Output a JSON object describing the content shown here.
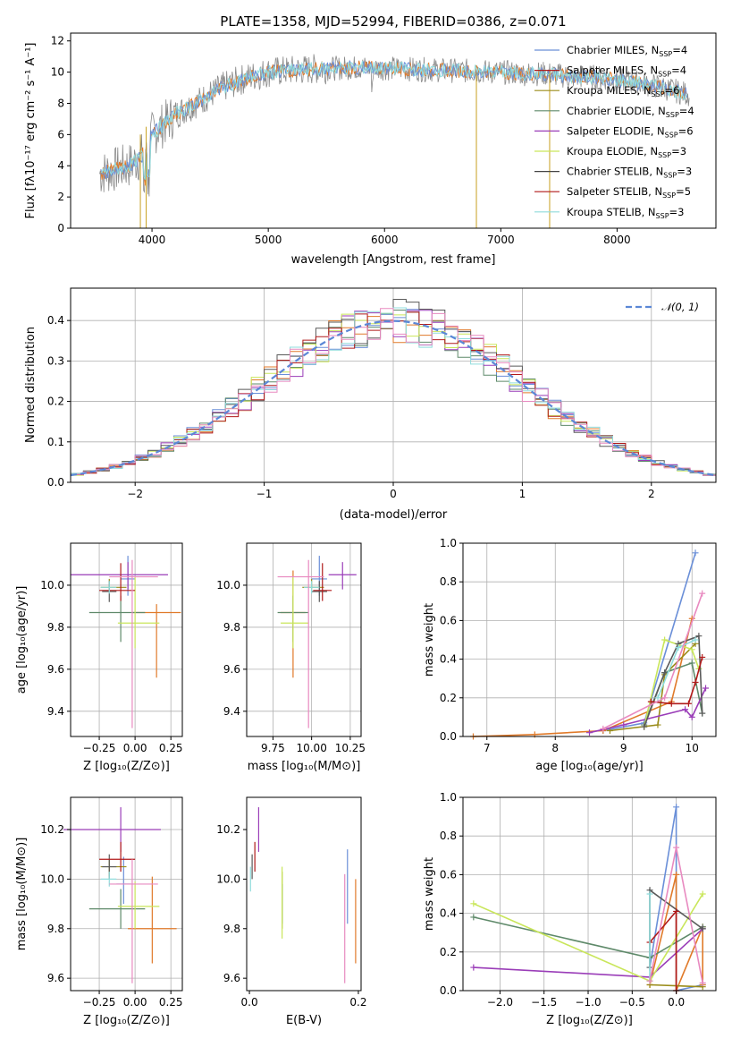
{
  "colors": [
    "#6a8fd8",
    "#e07a2a",
    "#9a8c1a",
    "#5f8a6a",
    "#9a3db8",
    "#c9e65a",
    "#5a5a5a",
    "#b01a1a",
    "#8fdcdc",
    "#e88ac0",
    "#8a8a8a"
  ],
  "legend_colors": [
    "#6a8fd8",
    "#b01a1a",
    "#9a8c1a",
    "#5f8a6a",
    "#9a3db8",
    "#c9e65a",
    "#444444",
    "#b01a1a",
    "#8fdcdc"
  ],
  "chart_data": [
    {
      "id": "spectrum",
      "type": "line",
      "title": "PLATE=1358, MJD=52994, FIBERID=0386, z=0.071",
      "xlabel": "wavelength [Angstrom, rest frame]",
      "ylabel": "Flux [fλ10⁻¹⁷ erg cm⁻² s⁻¹ A⁻¹]",
      "xlim": [
        3300,
        8850
      ],
      "ylim": [
        0,
        12.5
      ],
      "xticks": [
        4000,
        5000,
        6000,
        7000,
        8000
      ],
      "yticks": [
        0,
        2,
        4,
        6,
        8,
        10,
        12
      ],
      "continuum_anchor_points": [
        [
          3550,
          3.5
        ],
        [
          3700,
          3.8
        ],
        [
          3800,
          4.0
        ],
        [
          3900,
          4.5
        ],
        [
          4000,
          6.0
        ],
        [
          4200,
          7.3
        ],
        [
          4400,
          8.1
        ],
        [
          4600,
          9.0
        ],
        [
          4800,
          9.6
        ],
        [
          5000,
          10.0
        ],
        [
          5200,
          10.1
        ],
        [
          5400,
          10.2
        ],
        [
          5600,
          10.25
        ],
        [
          5800,
          10.3
        ],
        [
          6000,
          10.25
        ],
        [
          6200,
          10.2
        ],
        [
          6400,
          10.15
        ],
        [
          6600,
          10.1
        ],
        [
          6800,
          10.05
        ],
        [
          7000,
          10.0
        ],
        [
          7200,
          9.9
        ],
        [
          7400,
          9.9
        ],
        [
          7600,
          9.7
        ],
        [
          7800,
          9.7
        ],
        [
          8000,
          9.5
        ],
        [
          8200,
          9.3
        ],
        [
          8400,
          9.0
        ],
        [
          8600,
          8.6
        ]
      ],
      "legend_placement": "upper right",
      "series": [
        {
          "name": "Chabrier MILES, N",
          "nssp": "=4"
        },
        {
          "name": "Salpeter MILES, N",
          "nssp": "=4"
        },
        {
          "name": "Kroupa MILES, N",
          "nssp": "=6"
        },
        {
          "name": "Chabrier ELODIE, N",
          "nssp": "=4"
        },
        {
          "name": "Salpeter ELODIE, N",
          "nssp": "=6"
        },
        {
          "name": "Kroupa ELODIE, N",
          "nssp": "=3"
        },
        {
          "name": "Chabrier STELIB, N",
          "nssp": "=3"
        },
        {
          "name": "Salpeter STELIB, N",
          "nssp": "=5"
        },
        {
          "name": "Kroupa STELIB, N",
          "nssp": "=3"
        }
      ],
      "ssp_sub": "SSP"
    },
    {
      "id": "residuals",
      "type": "histogram",
      "xlabel": "(data-model)/error",
      "ylabel": "Normed distribution",
      "xlim": [
        -2.5,
        2.5
      ],
      "ylim": [
        0,
        0.48
      ],
      "xticks": [
        -2,
        -1,
        0,
        1,
        2
      ],
      "yticks": [
        0.0,
        0.1,
        0.2,
        0.3,
        0.4
      ],
      "grid": true,
      "bin_width": 0.1,
      "reference_curve": "𝒩(0, 1)",
      "legend_placement": "upper right"
    },
    {
      "id": "age_vs_Z",
      "type": "errorbar",
      "xlabel": "Z [log₁₀(Z/Z⊙)]",
      "ylabel": "age  [log₁₀(age/yr)]",
      "xlim": [
        -0.45,
        0.33
      ],
      "ylim": [
        9.28,
        10.2
      ],
      "xticks": [
        -0.25,
        0.0,
        0.25
      ],
      "yticks": [
        9.4,
        9.6,
        9.8,
        10.0
      ],
      "grid": true,
      "points": [
        {
          "x": -0.05,
          "y": 10.03,
          "xerr": [
            0.05,
            0.05
          ],
          "yerr": [
            0.08,
            0.11
          ]
        },
        {
          "x": 0.15,
          "y": 9.87,
          "xerr": [
            0.17,
            0.17
          ],
          "yerr": [
            0.31,
            0.04
          ]
        },
        {
          "x": -0.18,
          "y": 9.99,
          "xerr": [
            0.06,
            0.12
          ],
          "yerr": [
            0.01,
            0.04
          ]
        },
        {
          "x": -0.1,
          "y": 9.87,
          "xerr": [
            0.22,
            0.17
          ],
          "yerr": [
            0.14,
            0.08
          ]
        },
        {
          "x": -0.05,
          "y": 10.05,
          "xerr": [
            0.4,
            0.28
          ],
          "yerr": [
            0.07,
            0.06
          ]
        },
        {
          "x": 0.0,
          "y": 9.82,
          "xerr": [
            0.12,
            0.17
          ],
          "yerr": [
            0.12,
            0.22
          ]
        },
        {
          "x": -0.18,
          "y": 9.97,
          "xerr": [
            0.05,
            0.05
          ],
          "yerr": [
            0.05,
            0.05
          ]
        },
        {
          "x": -0.1,
          "y": 9.975,
          "xerr": [
            0.15,
            0.1
          ],
          "yerr": [
            0.05,
            0.13
          ]
        },
        {
          "x": -0.18,
          "y": 9.99,
          "xerr": [
            0.06,
            0.05
          ],
          "yerr": [
            0.03,
            0.03
          ]
        },
        {
          "x": -0.02,
          "y": 10.04,
          "xerr": [
            0.16,
            0.18
          ],
          "yerr": [
            0.72,
            0.08
          ]
        }
      ]
    },
    {
      "id": "age_vs_mass",
      "type": "errorbar",
      "xlabel": "mass [log₁₀(M/M⊙)]",
      "ylabel": "",
      "xlim": [
        9.58,
        10.32
      ],
      "ylim": [
        9.28,
        10.2
      ],
      "xticks": [
        9.75,
        10.0,
        10.25
      ],
      "yticks": [
        9.4,
        9.6,
        9.8,
        10.0
      ],
      "grid": true,
      "points": [
        {
          "x": 10.05,
          "y": 10.03,
          "xerr": [
            0.05,
            0.05
          ],
          "yerr": [
            0.08,
            0.11
          ]
        },
        {
          "x": 9.88,
          "y": 9.87,
          "xerr": [
            0.08,
            0.08
          ],
          "yerr": [
            0.31,
            0.2
          ]
        },
        {
          "x": 10.0,
          "y": 9.99,
          "xerr": [
            0.06,
            0.08
          ],
          "yerr": [
            0.01,
            0.04
          ]
        },
        {
          "x": 9.88,
          "y": 9.87,
          "xerr": [
            0.1,
            0.1
          ],
          "yerr": [
            0.14,
            0.08
          ]
        },
        {
          "x": 10.2,
          "y": 10.05,
          "xerr": [
            0.09,
            0.09
          ],
          "yerr": [
            0.07,
            0.06
          ]
        },
        {
          "x": 9.88,
          "y": 9.82,
          "xerr": [
            0.08,
            0.1
          ],
          "yerr": [
            0.12,
            0.22
          ]
        },
        {
          "x": 10.05,
          "y": 9.97,
          "xerr": [
            0.05,
            0.05
          ],
          "yerr": [
            0.05,
            0.05
          ]
        },
        {
          "x": 10.07,
          "y": 9.975,
          "xerr": [
            0.06,
            0.06
          ],
          "yerr": [
            0.05,
            0.13
          ]
        },
        {
          "x": 10.0,
          "y": 9.99,
          "xerr": [
            0.05,
            0.05
          ],
          "yerr": [
            0.03,
            0.03
          ]
        },
        {
          "x": 9.98,
          "y": 10.04,
          "xerr": [
            0.2,
            0.1
          ],
          "yerr": [
            0.72,
            0.08
          ]
        }
      ]
    },
    {
      "id": "weight_vs_age",
      "type": "line",
      "xlabel": "age  [log₁₀(age/yr)]",
      "ylabel": "mass weight",
      "xlim": [
        6.65,
        10.35
      ],
      "ylim": [
        0,
        1.0
      ],
      "xticks": [
        7,
        8,
        9,
        10
      ],
      "yticks": [
        0.0,
        0.2,
        0.4,
        0.6,
        0.8,
        1.0
      ],
      "grid": true,
      "series": [
        {
          "x": [
            8.7,
            9.3,
            10.05
          ],
          "y": [
            0.03,
            0.07,
            0.95
          ]
        },
        {
          "x": [
            6.8,
            7.7,
            8.7,
            9.7,
            10.0
          ],
          "y": [
            0.0,
            0.01,
            0.03,
            0.18,
            0.61
          ]
        },
        {
          "x": [
            8.8,
            9.5,
            9.6,
            10.05
          ],
          "y": [
            0.03,
            0.06,
            0.32,
            0.48
          ]
        },
        {
          "x": [
            9.3,
            9.6,
            10.0,
            10.15
          ],
          "y": [
            0.06,
            0.33,
            0.38,
            0.12
          ]
        },
        {
          "x": [
            8.5,
            9.0,
            9.9,
            10.0,
            10.2
          ],
          "y": [
            0.02,
            0.06,
            0.14,
            0.1,
            0.25
          ]
        },
        {
          "x": [
            9.3,
            9.6,
            10.0,
            10.1
          ],
          "y": [
            0.05,
            0.5,
            0.45,
            0.35
          ]
        },
        {
          "x": [
            9.3,
            9.6,
            9.8,
            10.1,
            10.15
          ],
          "y": [
            0.05,
            0.33,
            0.48,
            0.52,
            0.12
          ]
        },
        {
          "x": [
            9.4,
            9.7,
            9.95,
            10.05,
            10.15
          ],
          "y": [
            0.18,
            0.17,
            0.17,
            0.28,
            0.41
          ]
        },
        {
          "x": [
            9.5,
            9.8,
            10.05
          ],
          "y": [
            0.2,
            0.46,
            0.5
          ]
        },
        {
          "x": [
            8.7,
            9.6,
            10.15
          ],
          "y": [
            0.04,
            0.2,
            0.74
          ]
        }
      ]
    },
    {
      "id": "mass_vs_Z",
      "type": "errorbar",
      "xlabel": "Z [log₁₀(Z/Z⊙)]",
      "ylabel": "mass [log₁₀(M/M⊙)]",
      "xlim": [
        -0.45,
        0.33
      ],
      "ylim": [
        9.55,
        10.33
      ],
      "xticks": [
        -0.25,
        0.0,
        0.25
      ],
      "yticks": [
        9.6,
        9.8,
        10.0,
        10.2
      ],
      "grid": true,
      "points": [
        {
          "x": -0.08,
          "y": 9.98,
          "xerr": [
            0.05,
            0.05
          ],
          "yerr": [
            0.08,
            0.11
          ]
        },
        {
          "x": 0.12,
          "y": 9.8,
          "xerr": [
            0.17,
            0.17
          ],
          "yerr": [
            0.14,
            0.21
          ]
        },
        {
          "x": -0.18,
          "y": 10.05,
          "xerr": [
            0.06,
            0.12
          ],
          "yerr": [
            0.04,
            0.03
          ]
        },
        {
          "x": -0.1,
          "y": 9.88,
          "xerr": [
            0.22,
            0.17
          ],
          "yerr": [
            0.08,
            0.08
          ]
        },
        {
          "x": -0.1,
          "y": 10.2,
          "xerr": [
            0.4,
            0.28
          ],
          "yerr": [
            0.09,
            0.09
          ]
        },
        {
          "x": 0.0,
          "y": 9.89,
          "xerr": [
            0.12,
            0.17
          ],
          "yerr": [
            0.09,
            0.1
          ]
        },
        {
          "x": -0.18,
          "y": 10.05,
          "xerr": [
            0.05,
            0.05
          ],
          "yerr": [
            0.05,
            0.05
          ]
        },
        {
          "x": -0.1,
          "y": 10.08,
          "xerr": [
            0.15,
            0.1
          ],
          "yerr": [
            0.05,
            0.07
          ]
        },
        {
          "x": -0.18,
          "y": 10.0,
          "xerr": [
            0.06,
            0.05
          ],
          "yerr": [
            0.03,
            0.03
          ]
        },
        {
          "x": -0.02,
          "y": 9.98,
          "xerr": [
            0.16,
            0.18
          ],
          "yerr": [
            0.4,
            0.1
          ]
        }
      ]
    },
    {
      "id": "mass_vs_ebv",
      "type": "errorbar",
      "xlabel": "E(B-V)",
      "ylabel": "",
      "xlim": [
        -0.005,
        0.205
      ],
      "ylim": [
        9.55,
        10.33
      ],
      "xticks": [
        0.0,
        0.2
      ],
      "yticks": [
        9.6,
        9.8,
        10.0,
        10.2
      ],
      "grid": false,
      "points": [
        {
          "x": 0.18,
          "y": 10.0,
          "xerr": [
            0,
            0
          ],
          "yerr": [
            0.18,
            0.12
          ]
        },
        {
          "x": 0.195,
          "y": 9.83,
          "xerr": [
            0,
            0
          ],
          "yerr": [
            0.17,
            0.17
          ]
        },
        {
          "x": 0.06,
          "y": 9.9,
          "xerr": [
            0,
            0
          ],
          "yerr": [
            0.1,
            0.13
          ]
        },
        {
          "x": 0.06,
          "y": 9.9,
          "xerr": [
            0,
            0
          ],
          "yerr": [
            0.08,
            0.08
          ]
        },
        {
          "x": 0.017,
          "y": 10.2,
          "xerr": [
            0,
            0
          ],
          "yerr": [
            0.09,
            0.09
          ]
        },
        {
          "x": 0.06,
          "y": 9.9,
          "xerr": [
            0,
            0
          ],
          "yerr": [
            0.14,
            0.15
          ]
        },
        {
          "x": 0.005,
          "y": 10.05,
          "xerr": [
            0,
            0
          ],
          "yerr": [
            0.05,
            0.05
          ]
        },
        {
          "x": 0.01,
          "y": 10.08,
          "xerr": [
            0,
            0
          ],
          "yerr": [
            0.05,
            0.07
          ]
        },
        {
          "x": 0.002,
          "y": 10.0,
          "xerr": [
            0,
            0
          ],
          "yerr": [
            0.05,
            0.05
          ]
        },
        {
          "x": 0.175,
          "y": 9.8,
          "xerr": [
            0,
            0
          ],
          "yerr": [
            0.22,
            0.22
          ]
        }
      ]
    },
    {
      "id": "weight_vs_Z",
      "type": "line",
      "xlabel": "Z [log₁₀(Z/Z⊙)]",
      "ylabel": "mass weight",
      "xlim": [
        -2.42,
        0.45
      ],
      "ylim": [
        0,
        1.0
      ],
      "xticks": [
        -2.0,
        -1.5,
        -1.0,
        -0.5,
        0.0
      ],
      "yticks": [
        0.0,
        0.2,
        0.4,
        0.6,
        0.8,
        1.0
      ],
      "grid": true,
      "series": [
        {
          "x": [
            -0.3,
            0.0,
            0.0,
            0.3
          ],
          "y": [
            0.12,
            0.95,
            0.0,
            0.03
          ]
        },
        {
          "x": [
            -0.3,
            0.0,
            0.0,
            0.3,
            0.3
          ],
          "y": [
            0.03,
            0.6,
            0.0,
            0.33,
            0.03
          ]
        },
        {
          "x": [
            -0.3,
            0.3
          ],
          "y": [
            0.03,
            0.02
          ]
        },
        {
          "x": [
            -2.3,
            -0.3,
            0.3
          ],
          "y": [
            0.38,
            0.17,
            0.33
          ]
        },
        {
          "x": [
            -2.3,
            -0.3,
            0.3
          ],
          "y": [
            0.12,
            0.07,
            0.32
          ]
        },
        {
          "x": [
            -2.3,
            -0.3,
            0.3
          ],
          "y": [
            0.45,
            0.05,
            0.5
          ]
        },
        {
          "x": [
            -0.3,
            -0.3,
            0.3
          ],
          "y": [
            0.12,
            0.52,
            0.32
          ]
        },
        {
          "x": [
            -0.3,
            0.0,
            0.0
          ],
          "y": [
            0.25,
            0.41,
            0.0
          ]
        },
        {
          "x": [
            -0.3,
            -0.3
          ],
          "y": [
            0.5,
            0.05
          ]
        },
        {
          "x": [
            -0.3,
            0.0,
            0.3
          ],
          "y": [
            0.05,
            0.74,
            0.04
          ]
        }
      ]
    }
  ]
}
